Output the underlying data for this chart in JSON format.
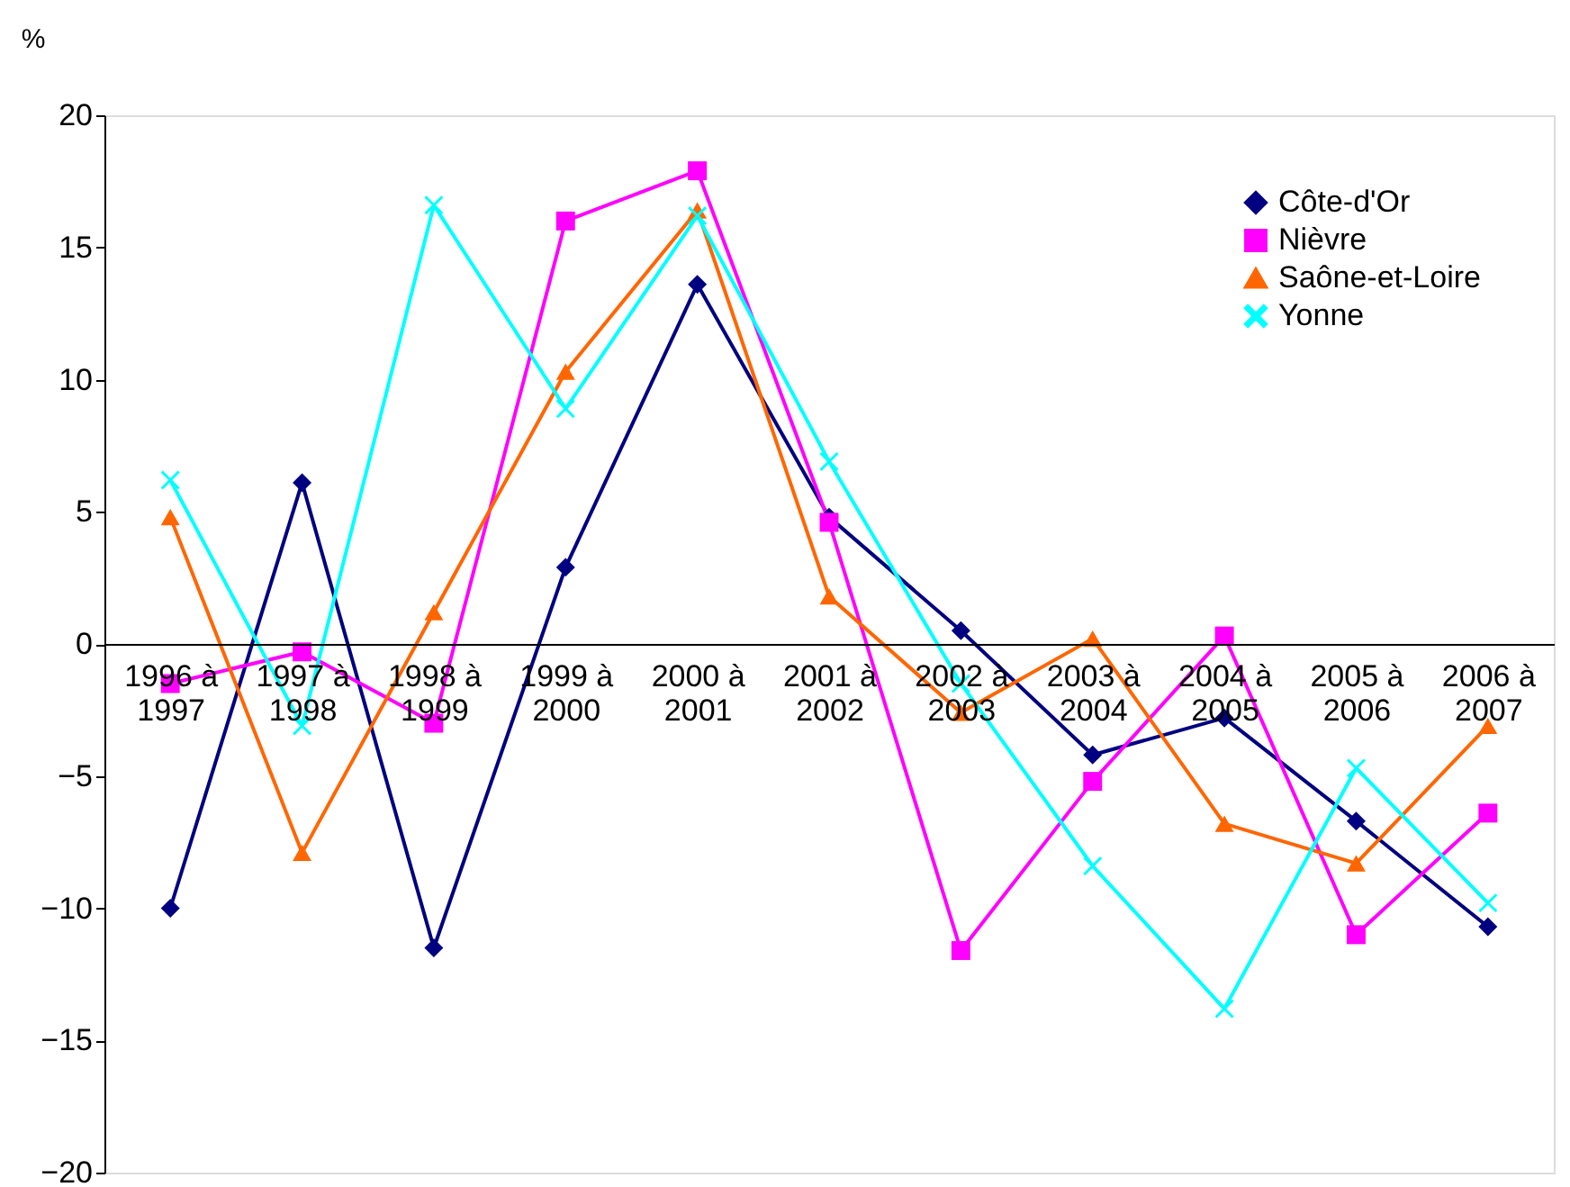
{
  "chart_data": {
    "type": "line",
    "ylabel": "%",
    "categories": [
      "1996 à 1997",
      "1997 à 1998",
      "1998 à 1999",
      "1999 à 2000",
      "2000 à 2001",
      "2001 à 2002",
      "2002 à 2003",
      "2003 à 2004",
      "2004 à 2005",
      "2005 à 2006",
      "2006 à 2007"
    ],
    "series": [
      {
        "name": "Côte-d'Or",
        "color": "#000080",
        "marker": "diamond",
        "values": [
          -10.0,
          6.1,
          -11.5,
          2.9,
          13.6,
          4.8,
          0.5,
          -4.2,
          -2.8,
          -6.7,
          -10.7
        ]
      },
      {
        "name": "Nièvre",
        "color": "#ff00ff",
        "marker": "square",
        "values": [
          -1.5,
          -0.3,
          -3.0,
          16.0,
          17.9,
          4.6,
          -11.6,
          -5.2,
          0.3,
          -11.0,
          -6.4
        ]
      },
      {
        "name": "Saône-et-Loire",
        "color": "#ff6600",
        "marker": "triangle",
        "values": [
          4.8,
          -7.9,
          1.2,
          10.3,
          16.4,
          1.8,
          -2.6,
          0.2,
          -6.8,
          -8.3,
          -3.1
        ]
      },
      {
        "name": "Yonne",
        "color": "#00ffff",
        "marker": "cross",
        "values": [
          6.2,
          -3.1,
          16.6,
          8.9,
          16.2,
          6.9,
          -1.5,
          -8.4,
          -13.8,
          -4.7,
          -9.8
        ]
      }
    ],
    "ylim": [
      -20,
      20
    ],
    "yticks": [
      -20,
      -15,
      -10,
      -5,
      0,
      5,
      10,
      15,
      20
    ],
    "grid": false,
    "legend": "top right",
    "line_style": "solid"
  }
}
